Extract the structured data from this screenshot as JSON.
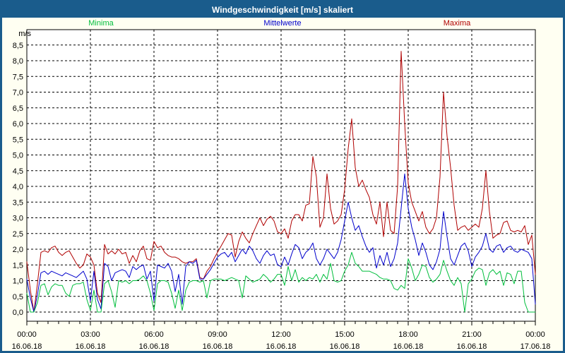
{
  "title_bar": {
    "title": "Windgeschwindigkeit [m/s] skaliert"
  },
  "colors": {
    "frame_border": "#1A5C8C",
    "title_bar_bg": "#1A5C8C",
    "title_text": "#FFFFFF",
    "page_bg": "#FFFFF2",
    "plot_bg": "#FFFFFF",
    "grid": "#000000",
    "minima": "#00BE3C",
    "mittelwerte": "#0000CC",
    "maxima": "#B00000"
  },
  "legend": {
    "items": [
      {
        "label": "Minima"
      },
      {
        "label": "Mittelwerte"
      },
      {
        "label": "Maxima"
      }
    ]
  },
  "chart_data": {
    "type": "line",
    "title": "Windgeschwindigkeit [m/s] skaliert",
    "ylabel": "m/s",
    "ylim": [
      0,
      9
    ],
    "grid": true,
    "legend_position": "top",
    "y_tick_step": 0.5,
    "y_tick_labels": [
      "0,0",
      "0,5",
      "1,0",
      "1,5",
      "2,0",
      "2,5",
      "3,0",
      "3,5",
      "4,0",
      "4,5",
      "5,0",
      "5,5",
      "6,0",
      "6,5",
      "7,0",
      "7,5",
      "8,0",
      "8,5"
    ],
    "x_axis": {
      "start_minute": 0,
      "step_minutes": 10,
      "total_minutes": 1440,
      "major_tick_every_minutes": 180,
      "minor_tick_every_minutes": 30,
      "ticks": [
        {
          "time": "00:00",
          "date": "16.06.18"
        },
        {
          "time": "03:00",
          "date": "16.06.18"
        },
        {
          "time": "06:00",
          "date": "16.06.18"
        },
        {
          "time": "09:00",
          "date": "16.06.18"
        },
        {
          "time": "12:00",
          "date": "16.06.18"
        },
        {
          "time": "15:00",
          "date": "16.06.18"
        },
        {
          "time": "18:00",
          "date": "16.06.18"
        },
        {
          "time": "21:00",
          "date": "16.06.18"
        },
        {
          "time": "00:00",
          "date": "17.06.18"
        }
      ]
    },
    "series": [
      {
        "name": "Maxima",
        "color": "#B00000",
        "values": [
          1.6,
          0.7,
          0.0,
          0.9,
          1.9,
          1.95,
          1.9,
          2.05,
          2.1,
          1.9,
          1.8,
          1.9,
          1.95,
          1.75,
          1.55,
          1.4,
          1.5,
          1.85,
          1.75,
          1.5,
          0.6,
          0.3,
          2.15,
          1.85,
          1.95,
          1.85,
          2.0,
          1.85,
          1.9,
          1.55,
          1.8,
          1.6,
          1.95,
          2.1,
          1.7,
          1.65,
          2.25,
          2.05,
          2.1,
          1.9,
          1.8,
          1.75,
          1.75,
          1.7,
          1.6,
          1.55,
          1.6,
          1.6,
          1.7,
          1.1,
          1.05,
          1.3,
          1.45,
          1.7,
          1.9,
          2.1,
          2.3,
          2.5,
          2.45,
          1.75,
          2.25,
          2.55,
          2.35,
          2.2,
          2.5,
          2.75,
          3.0,
          2.75,
          2.95,
          3.05,
          2.9,
          2.55,
          2.5,
          2.65,
          2.35,
          2.9,
          3.1,
          3.1,
          2.9,
          3.4,
          3.45,
          4.95,
          4.3,
          2.7,
          3.0,
          4.4,
          3.3,
          2.8,
          2.9,
          3.1,
          3.9,
          5.2,
          6.15,
          4.6,
          4.0,
          4.2,
          3.9,
          3.65,
          3.1,
          2.8,
          3.5,
          2.4,
          3.5,
          2.6,
          2.5,
          4.0,
          8.3,
          6.0,
          4.1,
          3.5,
          3.2,
          2.9,
          3.2,
          2.7,
          2.5,
          2.65,
          3.0,
          4.3,
          7.0,
          5.6,
          4.6,
          3.4,
          2.6,
          2.7,
          2.75,
          2.6,
          2.7,
          2.8,
          2.7,
          3.3,
          4.5,
          3.2,
          2.35,
          2.45,
          2.5,
          2.85,
          2.9,
          2.6,
          2.55,
          2.6,
          2.55,
          2.75,
          2.15,
          2.45,
          1.2
        ]
      },
      {
        "name": "Mittelwerte",
        "color": "#0000CC",
        "values": [
          1.05,
          0.45,
          0.0,
          0.55,
          1.25,
          1.3,
          1.2,
          1.3,
          1.25,
          1.2,
          1.15,
          1.25,
          1.2,
          1.15,
          1.1,
          1.2,
          1.3,
          1.05,
          0.35,
          1.3,
          0.4,
          0.1,
          1.55,
          1.45,
          1.0,
          1.25,
          1.3,
          1.35,
          1.3,
          1.1,
          1.45,
          1.35,
          1.45,
          1.5,
          1.05,
          1.3,
          0.35,
          1.5,
          1.45,
          1.4,
          1.55,
          1.3,
          0.65,
          1.2,
          0.25,
          1.45,
          1.6,
          1.55,
          1.65,
          1.05,
          1.05,
          1.2,
          1.35,
          1.55,
          1.75,
          1.85,
          1.9,
          1.75,
          1.9,
          1.6,
          1.8,
          2.0,
          1.85,
          2.1,
          1.95,
          1.7,
          1.55,
          1.8,
          1.95,
          1.8,
          1.85,
          1.5,
          1.45,
          1.75,
          1.5,
          1.85,
          2.15,
          2.05,
          1.7,
          1.9,
          2.0,
          2.2,
          1.7,
          1.5,
          1.7,
          2.0,
          1.85,
          1.7,
          1.9,
          2.3,
          2.9,
          3.5,
          3.0,
          2.6,
          2.75,
          2.4,
          2.1,
          1.9,
          2.05,
          1.4,
          1.8,
          1.5,
          1.9,
          1.45,
          1.7,
          2.2,
          3.3,
          4.4,
          3.3,
          2.7,
          2.3,
          1.8,
          2.2,
          1.9,
          1.5,
          1.35,
          1.6,
          2.0,
          3.2,
          2.4,
          1.7,
          1.5,
          1.8,
          2.1,
          2.2,
          1.95,
          1.45,
          1.75,
          1.9,
          2.1,
          2.5,
          2.0,
          1.9,
          2.1,
          2.15,
          1.9,
          2.05,
          2.1,
          1.95,
          1.9,
          2.0,
          1.95,
          1.9,
          1.7,
          0.25
        ]
      },
      {
        "name": "Minima",
        "color": "#00BE3C",
        "values": [
          0.6,
          0.0,
          0.0,
          0.3,
          0.85,
          0.9,
          0.55,
          0.8,
          0.9,
          0.85,
          0.85,
          0.6,
          0.5,
          0.85,
          0.9,
          0.9,
          0.95,
          0.4,
          0.05,
          0.7,
          0.0,
          0.0,
          0.9,
          1.0,
          0.65,
          0.15,
          1.0,
          0.95,
          1.0,
          0.9,
          1.0,
          1.0,
          1.05,
          1.15,
          1.0,
          0.6,
          0.05,
          0.9,
          1.0,
          1.0,
          0.95,
          0.6,
          0.12,
          0.7,
          0.05,
          0.7,
          0.95,
          1.0,
          1.0,
          0.95,
          1.0,
          0.45,
          1.0,
          1.05,
          1.05,
          1.05,
          1.0,
          1.05,
          1.1,
          1.05,
          1.0,
          0.45,
          1.15,
          1.05,
          0.95,
          1.0,
          1.05,
          1.2,
          1.1,
          0.95,
          1.05,
          1.2,
          1.2,
          0.85,
          1.45,
          1.0,
          1.35,
          0.95,
          1.1,
          1.0,
          1.1,
          1.05,
          1.2,
          0.95,
          1.2,
          1.05,
          1.55,
          1.0,
          0.95,
          1.0,
          1.3,
          1.5,
          1.9,
          1.55,
          1.45,
          1.3,
          1.3,
          1.3,
          1.25,
          1.2,
          1.1,
          1.05,
          1.05,
          1.0,
          0.75,
          0.7,
          0.85,
          0.75,
          1.7,
          1.4,
          1.0,
          1.2,
          1.5,
          1.45,
          1.1,
          0.95,
          1.05,
          1.2,
          1.65,
          1.3,
          1.0,
          0.85,
          1.1,
          0.9,
          0.0,
          0.9,
          1.05,
          1.3,
          1.4,
          1.35,
          0.85,
          1.25,
          1.35,
          1.2,
          1.3,
          0.85,
          1.25,
          1.2,
          0.9,
          1.3,
          1.3,
          0.3,
          0.0,
          0.0,
          0.0
        ]
      }
    ]
  }
}
